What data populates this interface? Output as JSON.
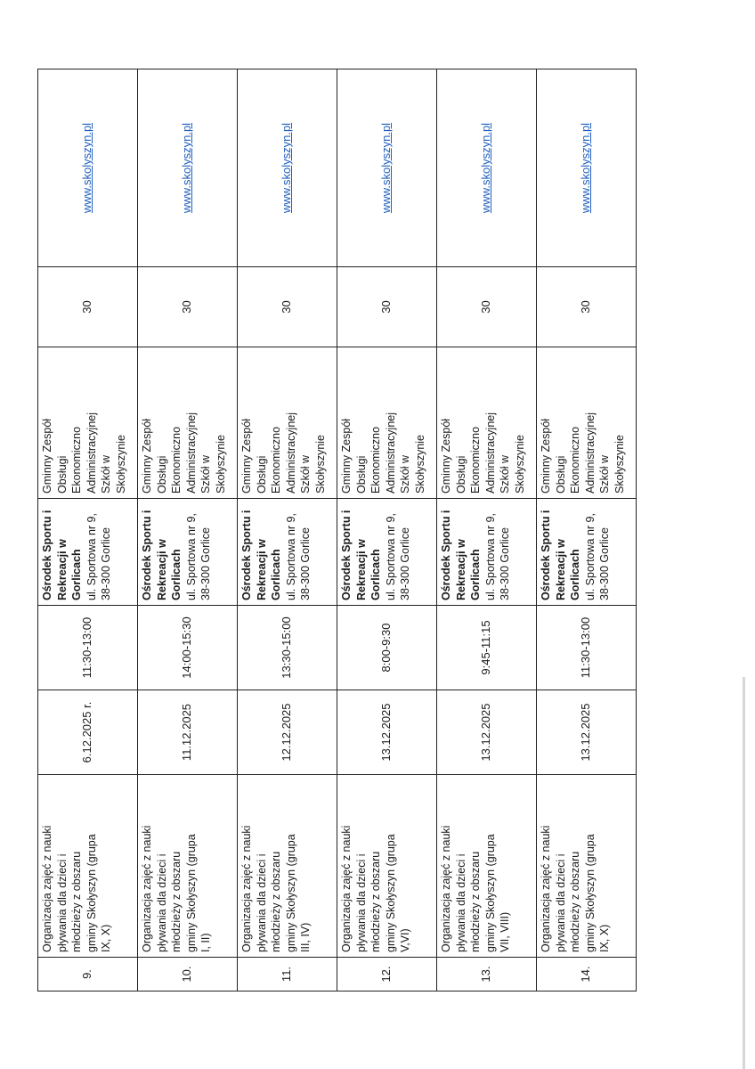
{
  "table": {
    "rows": [
      {
        "no": "9.",
        "description": "Organizacja zajęć  z nauki\npływania dla dzieci i\nmłodzieży z obszaru\ngminy Skołyszyn (grupa\nIX, X)",
        "date": "6.12.2025 r.",
        "time": "11:30-13:00",
        "place_name": "Ośrodek Sportu i\nRekreacji  w\nGorlicach",
        "place_address": "ul. Sportowa nr 9,\n38-300 Gorlice",
        "organizer": "Gminny Zespół\nObsługi\nEkonomiczno\nAdministracyjnej\nSzkół w\nSkołyszynie",
        "count": "30",
        "website": "www.skolyszyn.pl"
      },
      {
        "no": "10.",
        "description": "Organizacja zajęć  z nauki\npływania dla dzieci i\nmłodzieży z obszaru\ngminy Skołyszyn (grupa\nI, II)",
        "date": "11.12.2025",
        "time": "14:00-15:30",
        "place_name": "Ośrodek Sportu i\nRekreacji  w\nGorlicach",
        "place_address": "ul. Sportowa nr 9,\n38-300 Gorlice",
        "organizer": "Gminny Zespół\nObsługi\nEkonomiczno\nAdministracyjnej\nSzkół w\nSkołyszynie",
        "count": "30",
        "website": "www.skolyszyn.pl"
      },
      {
        "no": "11.",
        "description": "Organizacja zajęć  z nauki\npływania dla dzieci i\nmłodzieży z obszaru\ngminy Skołyszyn  (grupa\nIII, IV)",
        "date": "12.12.2025",
        "time": "13:30-15:00",
        "place_name": "Ośrodek Sportu i\nRekreacji  w\nGorlicach",
        "place_address": "ul. Sportowa nr 9,\n38-300 Gorlice",
        "organizer": "Gminny Zespół\nObsługi\nEkonomiczno\nAdministracyjnej\nSzkół w\nSkołyszynie",
        "count": "30",
        "website": "www.skolyszyn.pl"
      },
      {
        "no": "12.",
        "description": "Organizacja zajęć  z nauki\npływania dla dzieci i\nmłodzieży z obszaru\ngminy Skołyszyn  (grupa\nV,VI)",
        "date": "13.12.2025",
        "time": "8:00-9:30",
        "place_name": "Ośrodek Sportu i\nRekreacji  w\nGorlicach",
        "place_address": "ul. Sportowa nr 9,\n38-300 Gorlice",
        "organizer": "Gminny Zespół\nObsługi\nEkonomiczno\nAdministracyjnej\nSzkół w\nSkołyszynie",
        "count": "30",
        "website": "www.skolyszyn.pl"
      },
      {
        "no": "13.",
        "description": "Organizacja zajęć  z nauki\npływania dla dzieci i\nmłodzieży z obszaru\ngminy Skołyszyn (grupa\nVII, VIII)",
        "date": "13.12.2025",
        "time": "9:45-11:15",
        "place_name": "Ośrodek Sportu i\nRekreacji  w\nGorlicach",
        "place_address": "ul. Sportowa nr 9,\n38-300 Gorlice",
        "organizer": "Gminny Zespół\nObsługi\nEkonomiczno\nAdministracyjnej\nSzkół w\nSkołyszynie",
        "count": "30",
        "website": "www.skolyszyn.pl"
      },
      {
        "no": "14.",
        "description": "Organizacja zajęć  z nauki\npływania dla dzieci i\nmłodzieży z obszaru\ngminy Skołyszyn (grupa\nIX, X)",
        "date": "13.12.2025",
        "time": "11:30-13:00",
        "place_name": "Ośrodek Sportu i\nRekreacji  w\nGorlicach",
        "place_address": "ul. Sportowa nr 9,\n38-300 Gorlice",
        "organizer": "Gminny Zespół\nObsługi\nEkonomiczno\nAdministracyjnej\nSzkół w\nSkołyszynie",
        "count": "30",
        "website": "www.skolyszyn.pl"
      }
    ]
  },
  "colors": {
    "link": "#1f5fbf",
    "border": "#222222"
  }
}
